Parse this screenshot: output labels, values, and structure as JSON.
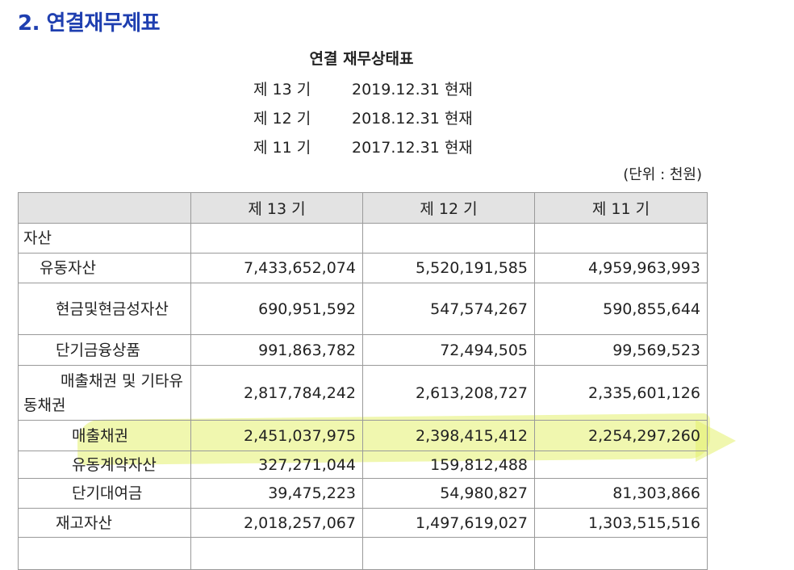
{
  "section_title": "2. 연결재무제표",
  "report_title": "연결 재무상태표",
  "periods": [
    {
      "label": "제 13 기",
      "date": "2019.12.31 현재"
    },
    {
      "label": "제 12 기",
      "date": "2018.12.31 현재"
    },
    {
      "label": "제 11 기",
      "date": "2017.12.31 현재"
    }
  ],
  "unit": "(단위 : 천원)",
  "table": {
    "headers": [
      "",
      "제 13 기",
      "제 12 기",
      "제 11 기"
    ],
    "rows": [
      {
        "label": "자산",
        "v13": "",
        "v12": "",
        "v11": ""
      },
      {
        "label": "유동자산",
        "v13": "7,433,652,074",
        "v12": "5,520,191,585",
        "v11": "4,959,963,993"
      },
      {
        "label": "현금및현금성자산",
        "v13": "690,951,592",
        "v12": "547,574,267",
        "v11": "590,855,644"
      },
      {
        "label": "단기금융상품",
        "v13": "991,863,782",
        "v12": "72,494,505",
        "v11": "99,569,523"
      },
      {
        "label_line1": "매출채권 및 기타유",
        "label_line2": "동채권",
        "v13": "2,817,784,242",
        "v12": "2,613,208,727",
        "v11": "2,335,601,126"
      },
      {
        "label": "매출채권",
        "v13": "2,451,037,975",
        "v12": "2,398,415,412",
        "v11": "2,254,297,260",
        "highlighted": true
      },
      {
        "label": "유동계약자산",
        "v13": "327,271,044",
        "v12": "159,812,488",
        "v11": ""
      },
      {
        "label": "단기대여금",
        "v13": "39,475,223",
        "v12": "54,980,827",
        "v11": "81,303,866"
      },
      {
        "label": "재고자산",
        "v13": "2,018,257,067",
        "v12": "1,497,619,027",
        "v11": "1,303,515,516"
      },
      {
        "label": "",
        "v13": "",
        "v12": "",
        "v11": ""
      }
    ]
  },
  "colors": {
    "section_title": "#1f3fb0",
    "header_bg": "#e3e3e3",
    "highlighter": "#e4f06e"
  }
}
